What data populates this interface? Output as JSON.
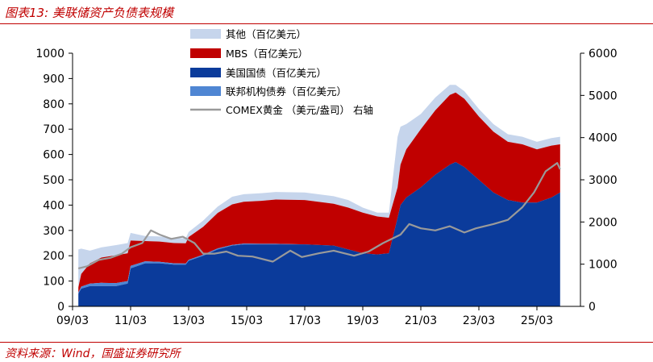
{
  "header": {
    "title": "图表13:  美联储资产负债表规模"
  },
  "footer": {
    "source": "资料来源：Wind，国盛证券研究所"
  },
  "colors": {
    "accent": "#c00000",
    "other": "#c6d5ec",
    "mbs": "#c00000",
    "treasury": "#0b3b9b",
    "agency": "#4f86d3",
    "gold": "#9a9a9a"
  },
  "chart_data": {
    "type": "area",
    "x_ticks": [
      "09/03",
      "11/03",
      "13/03",
      "15/03",
      "17/03",
      "19/03",
      "21/03",
      "23/03",
      "25/03"
    ],
    "y_left": {
      "ticks": [
        0,
        100,
        200,
        300,
        400,
        500,
        600,
        700,
        800,
        900,
        1000
      ],
      "lim": [
        0,
        1000
      ],
      "unit": "百亿美元"
    },
    "y_right": {
      "ticks": [
        0,
        1000,
        2000,
        3000,
        4000,
        5000,
        6000
      ],
      "lim": [
        0,
        6000
      ]
    },
    "legend": {
      "position": "top-center",
      "entries": [
        "其他（百亿美元）",
        "MBS（百亿美元）",
        "美国国债（百亿美元）",
        "联邦机构债券（百亿美元）",
        "COMEX黄金 （美元/盎司） 右轴"
      ]
    },
    "x": [
      2009.2,
      2009.3,
      2009.6,
      2010.0,
      2010.5,
      2010.9,
      2011.0,
      2011.5,
      2012.0,
      2012.5,
      2012.9,
      2013.0,
      2013.5,
      2014.0,
      2014.5,
      2014.9,
      2015.5,
      2016.0,
      2017.0,
      2018.0,
      2018.5,
      2019.0,
      2019.5,
      2019.9,
      2020.2,
      2020.3,
      2020.5,
      2021.0,
      2021.5,
      2022.0,
      2022.2,
      2022.5,
      2023.0,
      2023.5,
      2024.0,
      2024.5,
      2025.0,
      2025.5,
      2025.8
    ],
    "series": [
      {
        "name": "美国国债（百亿美元）",
        "stack": true,
        "values": [
          50,
          70,
          80,
          80,
          80,
          90,
          150,
          170,
          170,
          165,
          165,
          180,
          200,
          225,
          240,
          245,
          245,
          245,
          245,
          240,
          225,
          210,
          205,
          210,
          350,
          400,
          430,
          470,
          520,
          560,
          570,
          550,
          500,
          450,
          420,
          410,
          410,
          430,
          450
        ]
      },
      {
        "name": "联邦机构债券（百亿美元）",
        "stack": true,
        "values": [
          5,
          8,
          10,
          13,
          12,
          10,
          10,
          8,
          6,
          5,
          4,
          4,
          4,
          4,
          3,
          3,
          2,
          2,
          0,
          0,
          0,
          0,
          0,
          0,
          0,
          0,
          0,
          0,
          0,
          0,
          0,
          0,
          0,
          0,
          0,
          0,
          0,
          0,
          0
        ]
      },
      {
        "name": "MBS（百亿美元）",
        "stack": true,
        "values": [
          20,
          50,
          80,
          100,
          110,
          110,
          100,
          80,
          80,
          80,
          80,
          90,
          110,
          140,
          160,
          165,
          170,
          175,
          175,
          165,
          165,
          160,
          150,
          140,
          120,
          160,
          190,
          230,
          255,
          275,
          275,
          270,
          250,
          240,
          230,
          230,
          210,
          205,
          190
        ]
      },
      {
        "name": "其他（百亿美元）",
        "stack": true,
        "values": [
          150,
          100,
          50,
          40,
          40,
          40,
          30,
          20,
          20,
          20,
          20,
          20,
          25,
          25,
          30,
          30,
          30,
          30,
          30,
          30,
          30,
          20,
          15,
          20,
          200,
          150,
          100,
          60,
          50,
          40,
          30,
          30,
          30,
          30,
          30,
          30,
          30,
          30,
          30
        ]
      }
    ],
    "gold": {
      "name": "COMEX黄金 （美元/盎司） 右轴",
      "x": [
        2009.2,
        2009.5,
        2009.9,
        2010.3,
        2010.7,
        2011.0,
        2011.4,
        2011.7,
        2012.0,
        2012.4,
        2012.8,
        2013.2,
        2013.5,
        2013.9,
        2014.3,
        2014.7,
        2015.2,
        2015.9,
        2016.5,
        2016.9,
        2017.5,
        2018.0,
        2018.7,
        2019.2,
        2019.7,
        2020.0,
        2020.3,
        2020.6,
        2021.0,
        2021.5,
        2022.0,
        2022.5,
        2022.9,
        2023.5,
        2024.0,
        2024.5,
        2024.9,
        2025.3,
        2025.5,
        2025.7,
        2025.8
      ],
      "values": [
        900,
        950,
        1100,
        1150,
        1250,
        1400,
        1500,
        1800,
        1700,
        1600,
        1650,
        1500,
        1250,
        1250,
        1300,
        1200,
        1180,
        1060,
        1320,
        1170,
        1260,
        1320,
        1200,
        1300,
        1500,
        1600,
        1700,
        1950,
        1850,
        1800,
        1900,
        1750,
        1850,
        1950,
        2050,
        2350,
        2700,
        3200,
        3300,
        3400,
        3250
      ]
    }
  }
}
